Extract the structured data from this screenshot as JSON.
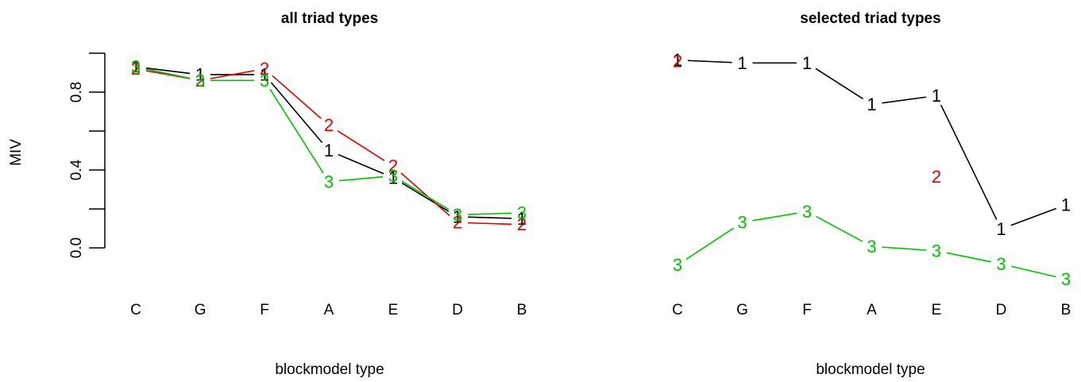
{
  "chart_data": [
    {
      "type": "line",
      "title": "all triad types",
      "xlabel": "blockmodel type",
      "ylabel": "MIV",
      "categories": [
        "C",
        "G",
        "F",
        "A",
        "E",
        "D",
        "B"
      ],
      "ylim": [
        -0.02,
        1.0
      ],
      "yticks": [
        "0.0",
        "0.4",
        "0.8"
      ],
      "show_y_axis": true,
      "grid": false,
      "series": [
        {
          "name": "1",
          "color": "#000000",
          "values": [
            0.93,
            0.89,
            0.89,
            0.5,
            0.36,
            0.16,
            0.15
          ]
        },
        {
          "name": "2",
          "color": "#DF0000",
          "values": [
            0.92,
            0.86,
            0.92,
            0.63,
            0.42,
            0.13,
            0.12
          ]
        },
        {
          "name": "3",
          "color": "#00C000",
          "values": [
            0.93,
            0.86,
            0.86,
            0.34,
            0.37,
            0.17,
            0.18
          ]
        }
      ]
    },
    {
      "type": "line",
      "title": "selected triad types",
      "xlabel": "blockmodel type",
      "ylabel": "",
      "categories": [
        "C",
        "G",
        "F",
        "A",
        "E",
        "D",
        "B"
      ],
      "ylim": [
        0,
        1
      ],
      "show_y_axis": false,
      "grid": false,
      "series": [
        {
          "name": "1",
          "color": "#000000",
          "values": [
            0.943,
            0.93,
            0.93,
            0.74,
            0.78,
            0.17,
            0.28
          ]
        },
        {
          "name": "2",
          "color": "#DF0000",
          "values": [
            0.938,
            null,
            null,
            null,
            0.41,
            null,
            null
          ]
        },
        {
          "name": "3",
          "color": "#00C000",
          "values": [
            0.005,
            0.2,
            0.25,
            0.09,
            0.07,
            0.01,
            -0.06
          ]
        }
      ]
    }
  ]
}
